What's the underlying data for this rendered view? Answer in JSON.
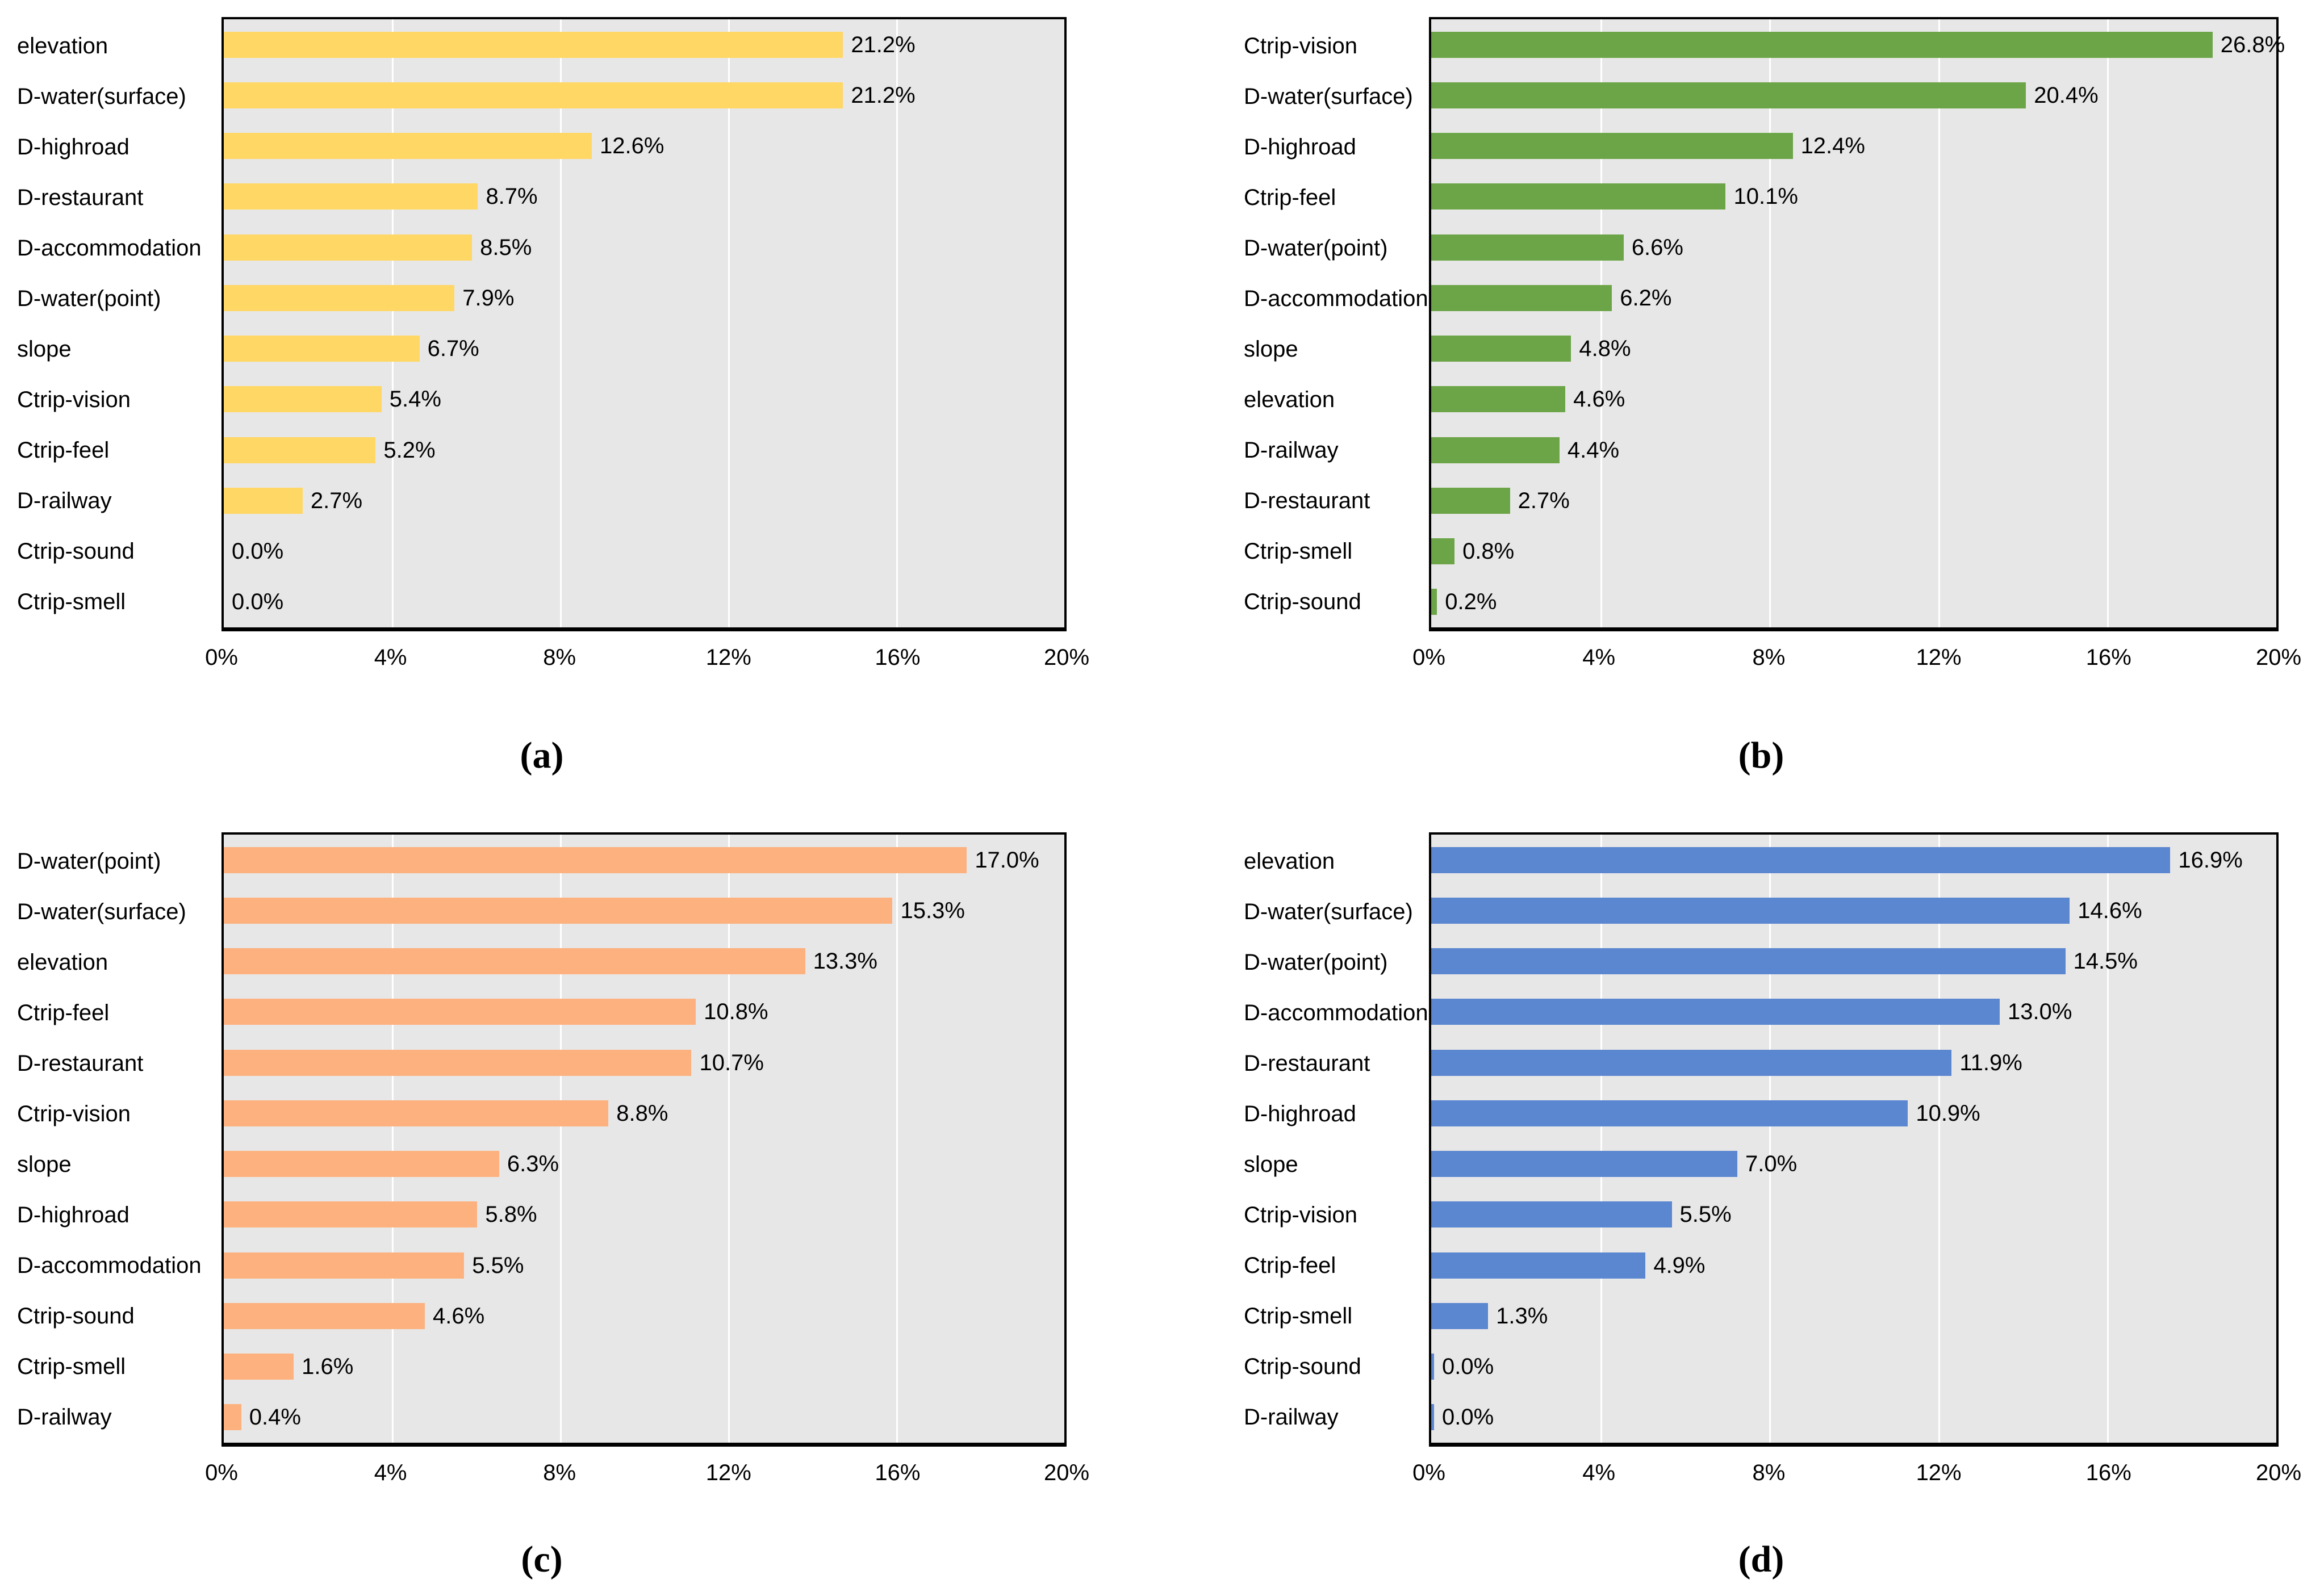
{
  "figure": {
    "background": "#FFFFFF",
    "plot_background": "#E8E7E7",
    "gridline_color": "#FFFFFF",
    "border_color": "#000000",
    "text_color": "#000000"
  },
  "chart_data": [
    {
      "id": "a",
      "type": "bar",
      "orientation": "horizontal",
      "caption": "(a)",
      "bar_color": "#FFD764",
      "categories": [
        "elevation",
        "D-water(surface)",
        "D-highroad",
        "D-restaurant",
        "D-accommodation",
        "D-water(point)",
        "slope",
        "Ctrip-vision",
        "Ctrip-feel",
        "D-railway",
        "Ctrip-sound",
        "Ctrip-smell"
      ],
      "values": [
        21.2,
        21.2,
        12.6,
        8.7,
        8.5,
        7.9,
        6.7,
        5.4,
        5.2,
        2.7,
        0.0,
        0.0
      ],
      "value_labels": [
        "21.2%",
        "21.2%",
        "12.6%",
        "8.7%",
        "8.5%",
        "7.9%",
        "6.7%",
        "5.4%",
        "5.2%",
        "2.7%",
        "0.0%",
        "0.0%"
      ],
      "xlabel_ticks": [
        "0%",
        "4%",
        "8%",
        "12%",
        "16%",
        "20%"
      ],
      "xlim": [
        0,
        20
      ],
      "grid": "vertical-white-gridlines",
      "legend": "none",
      "bar_scale": 0.695,
      "zero_bar_sliver": false
    },
    {
      "id": "b",
      "type": "bar",
      "orientation": "horizontal",
      "caption": "(b)",
      "bar_color": "#6BA547",
      "categories": [
        "Ctrip-vision",
        "D-water(surface)",
        "D-highroad",
        "Ctrip-feel",
        "D-water(point)",
        "D-accommodation",
        "slope",
        "elevation",
        "D-railway",
        "D-restaurant",
        "Ctrip-smell",
        "Ctrip-sound"
      ],
      "values": [
        26.8,
        20.4,
        12.4,
        10.1,
        6.6,
        6.2,
        4.8,
        4.6,
        4.4,
        2.7,
        0.8,
        0.2
      ],
      "value_labels": [
        "26.8%",
        "20.4%",
        "12.4%",
        "10.1%",
        "6.6%",
        "6.2%",
        "4.8%",
        "4.6%",
        "4.4%",
        "2.7%",
        "0.8%",
        "0.2%"
      ],
      "xlabel_ticks": [
        "0%",
        "4%",
        "8%",
        "12%",
        "16%",
        "20%"
      ],
      "xlim": [
        0,
        20
      ],
      "grid": "vertical-white-gridlines",
      "legend": "none",
      "bar_scale": 0.69,
      "zero_bar_sliver": false
    },
    {
      "id": "c",
      "type": "bar",
      "orientation": "horizontal",
      "caption": "(c)",
      "bar_color": "#FCB17E",
      "categories": [
        "D-water(point)",
        "D-water(surface)",
        "elevation",
        "Ctrip-feel",
        "D-restaurant",
        "Ctrip-vision",
        "slope",
        "D-highroad",
        "D-accommodation",
        "Ctrip-sound",
        "Ctrip-smell",
        "D-railway"
      ],
      "values": [
        17.0,
        15.3,
        13.3,
        10.8,
        10.7,
        8.8,
        6.3,
        5.8,
        5.5,
        4.6,
        1.6,
        0.4
      ],
      "value_labels": [
        "17.0%",
        "15.3%",
        "13.3%",
        "10.8%",
        "10.7%",
        "8.8%",
        "6.3%",
        "5.8%",
        "5.5%",
        "4.6%",
        "1.6%",
        "0.4%"
      ],
      "xlabel_ticks": [
        "0%",
        "4%",
        "8%",
        "12%",
        "16%",
        "20%"
      ],
      "xlim": [
        0,
        20
      ],
      "grid": "vertical-white-gridlines",
      "legend": "none",
      "bar_scale": 1.04,
      "zero_bar_sliver": false
    },
    {
      "id": "d",
      "type": "bar",
      "orientation": "horizontal",
      "caption": "(d)",
      "bar_color": "#5B86D0",
      "categories": [
        "elevation",
        "D-water(surface)",
        "D-water(point)",
        "D-accommodation",
        "D-restaurant",
        "D-highroad",
        "slope",
        "Ctrip-vision",
        "Ctrip-feel",
        "Ctrip-smell",
        "Ctrip-sound",
        "D-railway"
      ],
      "values": [
        16.9,
        14.6,
        14.5,
        13.0,
        11.9,
        10.9,
        7.0,
        5.5,
        4.9,
        1.3,
        0.0,
        0.0
      ],
      "value_labels": [
        "16.9%",
        "14.6%",
        "14.5%",
        "13.0%",
        "11.9%",
        "10.9%",
        "7.0%",
        "5.5%",
        "4.9%",
        "1.3%",
        "0.0%",
        "0.0%"
      ],
      "xlabel_ticks": [
        "0%",
        "4%",
        "8%",
        "12%",
        "16%",
        "20%"
      ],
      "xlim": [
        0,
        20
      ],
      "grid": "vertical-white-gridlines",
      "legend": "none",
      "bar_scale": 1.035,
      "zero_bar_sliver": true
    }
  ]
}
